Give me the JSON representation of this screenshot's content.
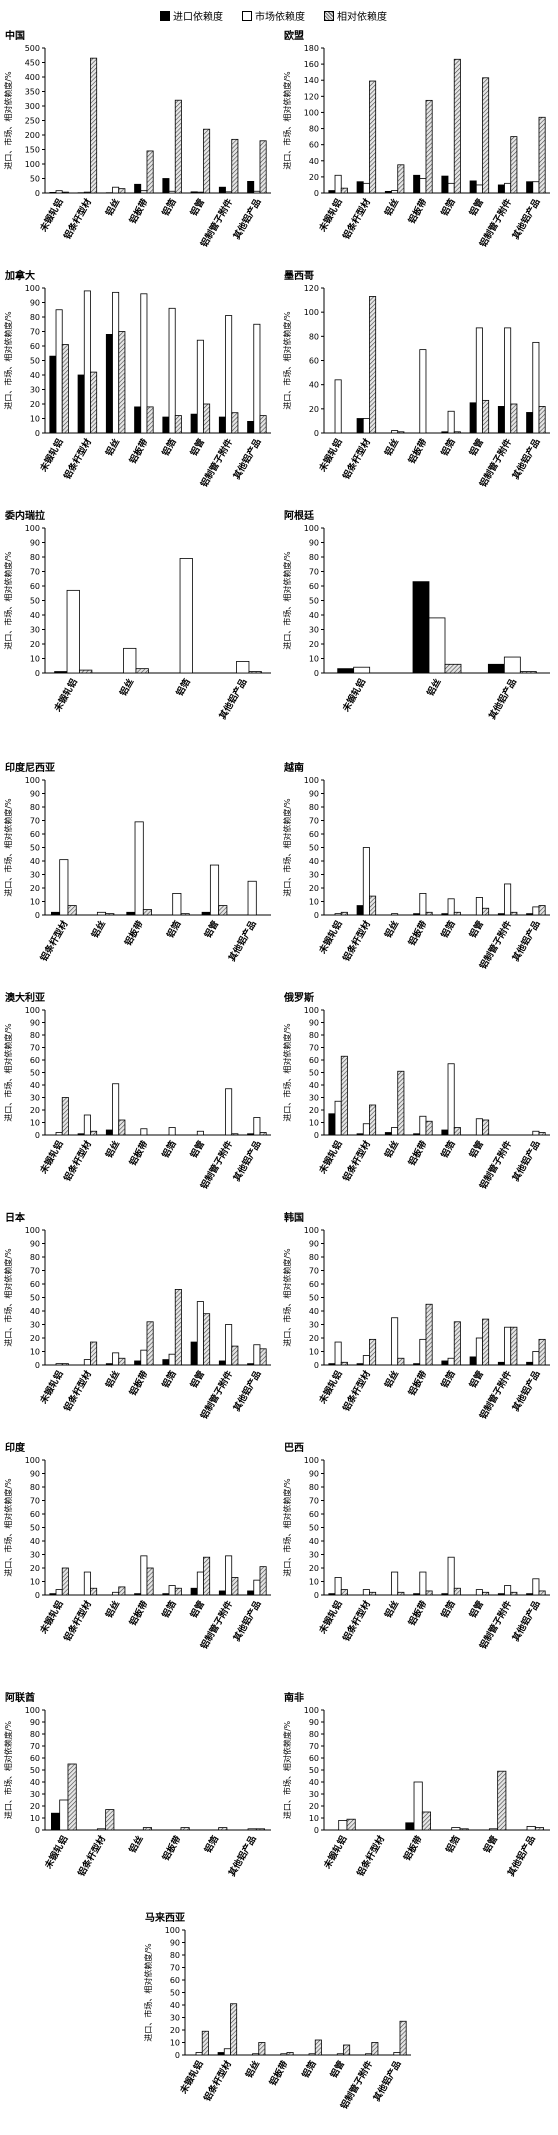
{
  "legend": [
    {
      "name": "进口依赖度",
      "color": "#000000",
      "pattern": "solid"
    },
    {
      "name": "市场依赖度",
      "color": "#ffffff",
      "pattern": "empty"
    },
    {
      "name": "相对依赖度",
      "color": "#8a8a8a",
      "pattern": "hatch"
    }
  ],
  "ylabel": "进口、市场、相对依赖度/%",
  "chart_data": [
    {
      "type": "bar",
      "title": "中国",
      "ylim": [
        0,
        500
      ],
      "yticks": [
        0,
        50,
        100,
        150,
        200,
        250,
        300,
        350,
        400,
        450,
        500
      ],
      "categories": [
        "未锻轧铝",
        "铝条杆型材",
        "铝丝",
        "铝板带",
        "铝箔",
        "铝管",
        "铝制管子附件",
        "其他铝产品"
      ],
      "series": [
        {
          "name": "进口依赖度",
          "values": [
            2,
            1,
            1,
            30,
            50,
            4,
            20,
            40
          ]
        },
        {
          "name": "市场依赖度",
          "values": [
            8,
            3,
            20,
            8,
            6,
            3,
            4,
            6
          ]
        },
        {
          "name": "相对依赖度",
          "values": [
            3,
            465,
            15,
            145,
            320,
            220,
            185,
            180
          ]
        }
      ]
    },
    {
      "type": "bar",
      "title": "欧盟",
      "ylim": [
        0,
        180
      ],
      "yticks": [
        0,
        20,
        40,
        60,
        80,
        100,
        120,
        140,
        160,
        180
      ],
      "categories": [
        "未锻轧铝",
        "铝条杆型材",
        "铝丝",
        "铝板带",
        "铝箔",
        "铝管",
        "铝制管子附件",
        "其他铝产品"
      ],
      "series": [
        {
          "name": "进口依赖度",
          "values": [
            3,
            14,
            2,
            22,
            21,
            15,
            10,
            14
          ]
        },
        {
          "name": "市场依赖度",
          "values": [
            22,
            12,
            3,
            18,
            12,
            10,
            12,
            14
          ]
        },
        {
          "name": "相对依赖度",
          "values": [
            6,
            139,
            35,
            115,
            166,
            143,
            70,
            94
          ]
        }
      ]
    },
    {
      "type": "bar",
      "title": "加拿大",
      "ylim": [
        0,
        100
      ],
      "yticks": [
        0,
        10,
        20,
        30,
        40,
        50,
        60,
        70,
        80,
        90,
        100
      ],
      "categories": [
        "未锻轧铝",
        "铝条杆型材",
        "铝丝",
        "铝板带",
        "铝箔",
        "铝管",
        "铝制管子附件",
        "其他铝产品"
      ],
      "series": [
        {
          "name": "进口依赖度",
          "values": [
            53,
            40,
            68,
            18,
            11,
            13,
            11,
            8
          ]
        },
        {
          "name": "市场依赖度",
          "values": [
            85,
            98,
            97,
            96,
            86,
            64,
            81,
            75
          ]
        },
        {
          "name": "相对依赖度",
          "values": [
            61,
            42,
            70,
            18,
            12,
            20,
            14,
            12
          ]
        }
      ]
    },
    {
      "type": "bar",
      "title": "墨西哥",
      "ylim": [
        0,
        120
      ],
      "yticks": [
        0,
        20,
        40,
        60,
        80,
        100,
        120
      ],
      "categories": [
        "未锻轧铝",
        "铝条杆型材",
        "铝丝",
        "铝板带",
        "铝箔",
        "铝管",
        "铝制管子附件",
        "其他铝产品"
      ],
      "series": [
        {
          "name": "进口依赖度",
          "values": [
            0,
            12,
            0,
            0,
            1,
            25,
            22,
            17
          ]
        },
        {
          "name": "市场依赖度",
          "values": [
            44,
            12,
            2,
            69,
            18,
            87,
            87,
            75
          ]
        },
        {
          "name": "相对依赖度",
          "values": [
            0,
            113,
            1,
            0,
            1,
            27,
            24,
            22
          ]
        }
      ]
    },
    {
      "type": "bar",
      "title": "委内瑞拉",
      "ylim": [
        0,
        100
      ],
      "yticks": [
        0,
        10,
        20,
        30,
        40,
        50,
        60,
        70,
        80,
        90,
        100
      ],
      "categories": [
        "未锻轧铝",
        "铝丝",
        "铝箔",
        "其他铝产品"
      ],
      "series": [
        {
          "name": "进口依赖度",
          "values": [
            1,
            0,
            0,
            0
          ]
        },
        {
          "name": "市场依赖度",
          "values": [
            57,
            17,
            79,
            8
          ]
        },
        {
          "name": "相对依赖度",
          "values": [
            2,
            3,
            0,
            1
          ]
        }
      ]
    },
    {
      "type": "bar",
      "title": "阿根廷",
      "ylim": [
        0,
        100
      ],
      "yticks": [
        0,
        10,
        20,
        30,
        40,
        50,
        60,
        70,
        80,
        90,
        100
      ],
      "categories": [
        "未锻轧铝",
        "铝丝",
        "其他铝产品"
      ],
      "series": [
        {
          "name": "进口依赖度",
          "values": [
            3,
            63,
            6
          ]
        },
        {
          "name": "市场依赖度",
          "values": [
            4,
            38,
            11
          ]
        },
        {
          "name": "相对依赖度",
          "values": [
            0,
            6,
            1
          ]
        }
      ]
    },
    {
      "type": "bar",
      "title": "印度尼西亚",
      "ylim": [
        0,
        100
      ],
      "yticks": [
        0,
        10,
        20,
        30,
        40,
        50,
        60,
        70,
        80,
        90,
        100
      ],
      "categories": [
        "铝条杆型材",
        "铝丝",
        "铝板带",
        "铝箔",
        "铝管",
        "其他铝产品"
      ],
      "series": [
        {
          "name": "进口依赖度",
          "values": [
            2,
            0,
            2,
            0,
            2,
            0
          ]
        },
        {
          "name": "市场依赖度",
          "values": [
            41,
            2,
            69,
            16,
            37,
            25
          ]
        },
        {
          "name": "相对依赖度",
          "values": [
            7,
            1,
            4,
            1,
            7,
            0
          ]
        }
      ]
    },
    {
      "type": "bar",
      "title": "越南",
      "ylim": [
        0,
        100
      ],
      "yticks": [
        0,
        10,
        20,
        30,
        40,
        50,
        60,
        70,
        80,
        90,
        100
      ],
      "categories": [
        "未锻轧铝",
        "铝条杆型材",
        "铝丝",
        "铝板带",
        "铝箔",
        "铝管",
        "铝制管子附件",
        "其他铝产品"
      ],
      "series": [
        {
          "name": "进口依赖度",
          "values": [
            0,
            7,
            0,
            1,
            1,
            0,
            1,
            1
          ]
        },
        {
          "name": "市场依赖度",
          "values": [
            1,
            50,
            1,
            16,
            12,
            13,
            23,
            6
          ]
        },
        {
          "name": "相对依赖度",
          "values": [
            2,
            14,
            0,
            2,
            2,
            5,
            2,
            7
          ]
        }
      ]
    },
    {
      "type": "bar",
      "title": "澳大利亚",
      "ylim": [
        0,
        100
      ],
      "yticks": [
        0,
        10,
        20,
        30,
        40,
        50,
        60,
        70,
        80,
        90,
        100
      ],
      "categories": [
        "未锻轧铝",
        "铝条杆型材",
        "铝丝",
        "铝板带",
        "铝箔",
        "铝管",
        "铝制管子附件",
        "其他铝产品"
      ],
      "series": [
        {
          "name": "进口依赖度",
          "values": [
            0,
            1,
            4,
            0,
            0,
            0,
            0,
            1
          ]
        },
        {
          "name": "市场依赖度",
          "values": [
            2,
            16,
            41,
            5,
            6,
            3,
            37,
            14
          ]
        },
        {
          "name": "相对依赖度",
          "values": [
            30,
            3,
            12,
            0,
            0,
            0,
            1,
            2
          ]
        }
      ]
    },
    {
      "type": "bar",
      "title": "俄罗斯",
      "ylim": [
        0,
        100
      ],
      "yticks": [
        0,
        10,
        20,
        30,
        40,
        50,
        60,
        70,
        80,
        90,
        100
      ],
      "categories": [
        "未锻轧铝",
        "铝条杆型材",
        "铝丝",
        "铝板带",
        "铝箔",
        "铝管",
        "铝制管子附件",
        "其他铝产品"
      ],
      "series": [
        {
          "name": "进口依赖度",
          "values": [
            17,
            1,
            2,
            1,
            4,
            0,
            0,
            0
          ]
        },
        {
          "name": "市场依赖度",
          "values": [
            27,
            9,
            6,
            15,
            57,
            13,
            0,
            3
          ]
        },
        {
          "name": "相对依赖度",
          "values": [
            63,
            24,
            51,
            11,
            6,
            12,
            0,
            2
          ]
        }
      ]
    },
    {
      "type": "bar",
      "title": "日本",
      "ylim": [
        0,
        100
      ],
      "yticks": [
        0,
        10,
        20,
        30,
        40,
        50,
        60,
        70,
        80,
        90,
        100
      ],
      "categories": [
        "未锻轧铝",
        "铝条杆型材",
        "铝丝",
        "铝板带",
        "铝箔",
        "铝管",
        "铝制管子附件",
        "其他铝产品"
      ],
      "series": [
        {
          "name": "进口依赖度",
          "values": [
            0,
            0,
            1,
            3,
            4,
            17,
            3,
            1
          ]
        },
        {
          "name": "市场依赖度",
          "values": [
            1,
            4,
            9,
            11,
            8,
            47,
            30,
            15
          ]
        },
        {
          "name": "相对依赖度",
          "values": [
            1,
            17,
            5,
            32,
            56,
            38,
            14,
            12
          ]
        }
      ]
    },
    {
      "type": "bar",
      "title": "韩国",
      "ylim": [
        0,
        100
      ],
      "yticks": [
        0,
        10,
        20,
        30,
        40,
        50,
        60,
        70,
        80,
        90,
        100
      ],
      "categories": [
        "未锻轧铝",
        "铝条杆型材",
        "铝丝",
        "铝板带",
        "铝箔",
        "铝管",
        "铝制管子附件",
        "其他铝产品"
      ],
      "series": [
        {
          "name": "进口依赖度",
          "values": [
            1,
            1,
            0,
            1,
            3,
            6,
            2,
            2
          ]
        },
        {
          "name": "市场依赖度",
          "values": [
            17,
            7,
            35,
            19,
            5,
            20,
            28,
            10
          ]
        },
        {
          "name": "相对依赖度",
          "values": [
            2,
            19,
            5,
            45,
            32,
            34,
            28,
            19
          ]
        }
      ]
    },
    {
      "type": "bar",
      "title": "印度",
      "ylim": [
        0,
        100
      ],
      "yticks": [
        0,
        10,
        20,
        30,
        40,
        50,
        60,
        70,
        80,
        90,
        100
      ],
      "categories": [
        "未锻轧铝",
        "铝条杆型材",
        "铝丝",
        "铝板带",
        "铝箔",
        "铝管",
        "铝制管子附件",
        "其他铝产品"
      ],
      "series": [
        {
          "name": "进口依赖度",
          "values": [
            1,
            0,
            0,
            1,
            1,
            5,
            3,
            3
          ]
        },
        {
          "name": "市场依赖度",
          "values": [
            4,
            17,
            2,
            29,
            7,
            17,
            29,
            11
          ]
        },
        {
          "name": "相对依赖度",
          "values": [
            20,
            5,
            6,
            20,
            5,
            28,
            13,
            21
          ]
        }
      ]
    },
    {
      "type": "bar",
      "title": "巴西",
      "ylim": [
        0,
        100
      ],
      "yticks": [
        0,
        10,
        20,
        30,
        40,
        50,
        60,
        70,
        80,
        90,
        100
      ],
      "categories": [
        "未锻轧铝",
        "铝条杆型材",
        "铝丝",
        "铝板带",
        "铝箔",
        "铝管",
        "铝制管子附件",
        "其他铝产品"
      ],
      "series": [
        {
          "name": "进口依赖度",
          "values": [
            1,
            0,
            0,
            1,
            1,
            0,
            1,
            1
          ]
        },
        {
          "name": "市场依赖度",
          "values": [
            13,
            4,
            17,
            17,
            28,
            4,
            7,
            12
          ]
        },
        {
          "name": "相对依赖度",
          "values": [
            4,
            2,
            2,
            3,
            5,
            2,
            2,
            3
          ]
        }
      ]
    },
    {
      "type": "bar",
      "title": "阿联酋",
      "ylim": [
        0,
        100
      ],
      "yticks": [
        0,
        10,
        20,
        30,
        40,
        50,
        60,
        70,
        80,
        90,
        100
      ],
      "categories": [
        "未锻轧铝",
        "铝条杆型材",
        "铝丝",
        "铝板带",
        "铝箔",
        "其他铝产品"
      ],
      "series": [
        {
          "name": "进口依赖度",
          "values": [
            14,
            0,
            0,
            0,
            0,
            0
          ]
        },
        {
          "name": "市场依赖度",
          "values": [
            25,
            1,
            0,
            0,
            0,
            1
          ]
        },
        {
          "name": "相对依赖度",
          "values": [
            55,
            17,
            2,
            2,
            2,
            1
          ]
        }
      ]
    },
    {
      "type": "bar",
      "title": "南非",
      "ylim": [
        0,
        100
      ],
      "yticks": [
        0,
        10,
        20,
        30,
        40,
        50,
        60,
        70,
        80,
        90,
        100
      ],
      "categories": [
        "未锻轧铝",
        "铝条杆型材",
        "铝板带",
        "铝箔",
        "铝管",
        "其他铝产品"
      ],
      "series": [
        {
          "name": "进口依赖度",
          "values": [
            0,
            0,
            6,
            0,
            0,
            0
          ]
        },
        {
          "name": "市场依赖度",
          "values": [
            8,
            0,
            40,
            2,
            1,
            3
          ]
        },
        {
          "name": "相对依赖度",
          "values": [
            9,
            0,
            15,
            1,
            49,
            2
          ]
        }
      ]
    },
    {
      "type": "bar",
      "title": "马来西亚",
      "ylim": [
        0,
        100
      ],
      "yticks": [
        0,
        10,
        20,
        30,
        40,
        50,
        60,
        70,
        80,
        90,
        100
      ],
      "categories": [
        "未锻轧铝",
        "铝条杆型材",
        "铝丝",
        "铝板带",
        "铝箔",
        "铝管",
        "铝制管子附件",
        "其他铝产品"
      ],
      "series": [
        {
          "name": "进口依赖度",
          "values": [
            0,
            2,
            0,
            0,
            0,
            0,
            0,
            0
          ]
        },
        {
          "name": "市场依赖度",
          "values": [
            2,
            5,
            1,
            1,
            1,
            1,
            1,
            2
          ]
        },
        {
          "name": "相对依赖度",
          "values": [
            19,
            41,
            10,
            2,
            12,
            8,
            10,
            27
          ]
        }
      ]
    }
  ]
}
